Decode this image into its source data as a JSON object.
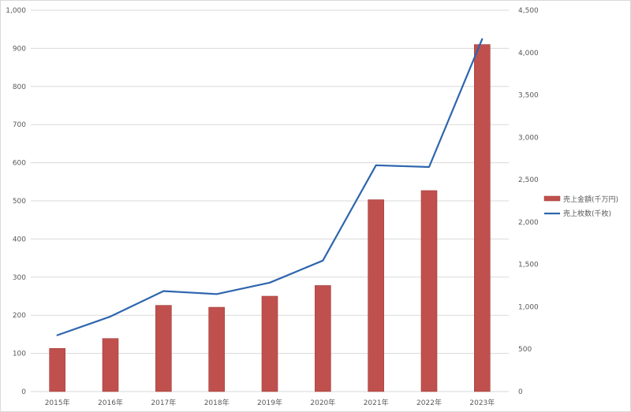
{
  "chart_data": {
    "type": "bar",
    "categories": [
      "2015年",
      "2016年",
      "2017年",
      "2018年",
      "2019年",
      "2020年",
      "2021年",
      "2022年",
      "2023年"
    ],
    "series": [
      {
        "name": "売上金額(千万円)",
        "type": "bar",
        "axis": "left",
        "color": "#c0504d",
        "values": [
          113,
          139,
          226,
          221,
          250,
          278,
          503,
          527,
          910
        ]
      },
      {
        "name": "売上枚数(千枚)",
        "type": "line",
        "axis": "right",
        "color": "#2e65ae",
        "values": [
          665,
          885,
          1185,
          1150,
          1285,
          1545,
          2670,
          2650,
          4160
        ]
      }
    ],
    "left_axis": {
      "ylim": [
        0,
        1000
      ],
      "ticks": [
        0,
        100,
        200,
        300,
        400,
        500,
        600,
        700,
        800,
        900,
        1000
      ],
      "tick_labels": [
        "0",
        "100",
        "200",
        "300",
        "400",
        "500",
        "600",
        "700",
        "800",
        "900",
        "1,000"
      ]
    },
    "right_axis": {
      "ylim": [
        0,
        4500
      ],
      "ticks": [
        0,
        500,
        1000,
        1500,
        2000,
        2500,
        3000,
        3500,
        4000,
        4500
      ],
      "tick_labels": [
        "0",
        "500",
        "1,000",
        "1,500",
        "2,000",
        "2,500",
        "3,000",
        "3,500",
        "4,000",
        "4,500"
      ]
    },
    "grid": true,
    "legend_position": "right"
  }
}
